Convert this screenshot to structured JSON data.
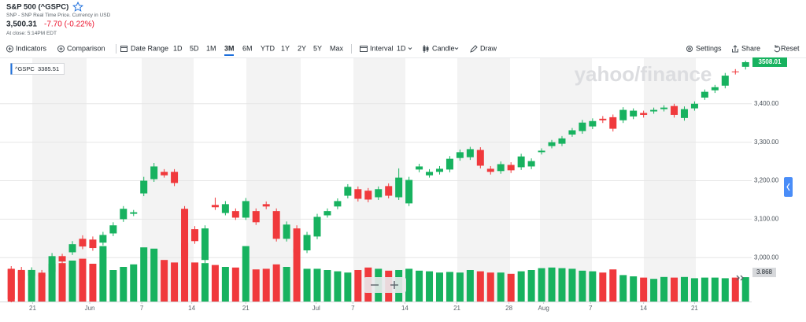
{
  "header": {
    "title": "S&P 500 (^GSPC)",
    "subtitle": "SNP - SNP Real Time Price. Currency in USD",
    "price": "3,500.31",
    "change": "-7.70 (-0.22%)",
    "close_time": "At close: 5:14PM EDT"
  },
  "toolbar": {
    "indicators": "Indicators",
    "comparison": "Comparison",
    "date_range": "Date Range",
    "ranges": [
      "1D",
      "5D",
      "1M",
      "3M",
      "6M",
      "YTD",
      "1Y",
      "2Y",
      "5Y",
      "Max"
    ],
    "selected_range": "3M",
    "interval_label": "Interval",
    "interval": "1D",
    "chart_style": "Candle",
    "draw": "Draw",
    "settings": "Settings",
    "share": "Share",
    "reset": "Reset"
  },
  "chart_data": {
    "type": "candlestick",
    "watermark": "yahoo/finance",
    "legend_symbol": "^GSPC",
    "legend_value": "3385.51",
    "up_color": "#17b25f",
    "down_color": "#f0393c",
    "grid": true,
    "open": [
      2970,
      2968,
      2953,
      2961,
      2963,
      3004,
      3014,
      3049,
      3047,
      3039,
      3063,
      3100,
      3114,
      3167,
      3204,
      3223,
      3223,
      3127,
      3074,
      2994,
      3137,
      3116,
      3121,
      3104,
      3121,
      3139,
      3121,
      3049,
      3076,
      3019,
      3055,
      3110,
      3133,
      3161,
      3178,
      3174,
      3157,
      3186,
      3157,
      3141,
      3229,
      3214,
      3223,
      3229,
      3259,
      3261,
      3280,
      3231,
      3225,
      3241,
      3235,
      3237,
      3274,
      3290,
      3296,
      3320,
      3329,
      3341,
      3361,
      3365,
      3357,
      3367,
      3376,
      3380,
      3386,
      3394,
      3363,
      3388,
      3416,
      3435,
      3447,
      3484,
      3496
    ],
    "high": [
      2978,
      2976,
      2975,
      2968,
      3012,
      3010,
      3043,
      3058,
      3055,
      3067,
      3092,
      3134,
      3124,
      3210,
      3246,
      3230,
      3230,
      3134,
      3082,
      3084,
      3156,
      3147,
      3128,
      3155,
      3128,
      3146,
      3128,
      3094,
      3084,
      3067,
      3114,
      3128,
      3154,
      3191,
      3185,
      3181,
      3185,
      3193,
      3232,
      3210,
      3244,
      3230,
      3238,
      3264,
      3281,
      3288,
      3287,
      3238,
      3250,
      3248,
      3270,
      3258,
      3284,
      3306,
      3316,
      3337,
      3358,
      3362,
      3368,
      3372,
      3391,
      3388,
      3382,
      3390,
      3396,
      3400,
      3393,
      3406,
      3437,
      3449,
      3480,
      3490,
      3512
    ],
    "low": [
      2884,
      2934,
      2945,
      2944,
      2958,
      2982,
      3007,
      3022,
      3018,
      3032,
      3056,
      3093,
      3108,
      3160,
      3197,
      3208,
      3186,
      2996,
      3036,
      2986,
      3124,
      3110,
      3098,
      3098,
      3085,
      3126,
      3042,
      3042,
      3006,
      3012,
      3048,
      3104,
      3126,
      3154,
      3146,
      3144,
      3150,
      3154,
      3150,
      3134,
      3222,
      3208,
      3216,
      3222,
      3252,
      3254,
      3232,
      3216,
      3218,
      3220,
      3228,
      3230,
      3268,
      3284,
      3290,
      3314,
      3322,
      3334,
      3350,
      3328,
      3350,
      3360,
      3364,
      3374,
      3380,
      3364,
      3356,
      3382,
      3410,
      3428,
      3440,
      3476,
      3489
    ],
    "close": [
      2892,
      2941,
      2968,
      2951,
      3004,
      2990,
      3035,
      3029,
      3025,
      3059,
      3084,
      3127,
      3118,
      3200,
      3237,
      3214,
      3194,
      3004,
      3043,
      3076,
      3131,
      3139,
      3104,
      3147,
      3092,
      3133,
      3049,
      3086,
      3014,
      3059,
      3106,
      3121,
      3147,
      3184,
      3153,
      3151,
      3178,
      3161,
      3208,
      3202,
      3237,
      3223,
      3231,
      3257,
      3274,
      3282,
      3239,
      3223,
      3243,
      3227,
      3263,
      3251,
      3278,
      3300,
      3310,
      3331,
      3351,
      3355,
      3357,
      3335,
      3384,
      3382,
      3371,
      3384,
      3390,
      3371,
      3386,
      3400,
      3431,
      3443,
      3473,
      3482,
      3508.01
    ],
    "volume": [
      5.2,
      4.8,
      5.0,
      4.3,
      6.0,
      6.1,
      6.5,
      6.8,
      6.0,
      8.8,
      5.0,
      5.5,
      5.9,
      8.6,
      8.4,
      6.6,
      6.2,
      9.3,
      6.2,
      6.1,
      5.8,
      5.5,
      5.4,
      8.8,
      5.1,
      5.2,
      5.9,
      5.5,
      8.4,
      5.2,
      5.2,
      5.0,
      4.8,
      4.6,
      5.0,
      5.4,
      5.2,
      4.9,
      5.0,
      5.2,
      4.9,
      4.8,
      4.6,
      4.7,
      4.6,
      5.0,
      4.8,
      4.6,
      4.6,
      4.4,
      4.8,
      5.0,
      5.3,
      5.4,
      5.3,
      5.2,
      4.9,
      4.8,
      4.6,
      5.1,
      4.2,
      4.0,
      3.8,
      3.6,
      3.9,
      3.8,
      3.9,
      3.7,
      3.8,
      3.8,
      3.7,
      3.8,
      3.868
    ],
    "volume_lim": [
      0,
      9.5
    ],
    "ylim": [
      2886,
      3510
    ],
    "yticks": [
      {
        "value": 3000,
        "label": "3,000.00"
      },
      {
        "value": 3100,
        "label": "3,100.00"
      },
      {
        "value": 3200,
        "label": "3,200.00"
      },
      {
        "value": 3300,
        "label": "3,300.00"
      },
      {
        "value": 3400,
        "label": "3,400.00"
      }
    ],
    "xlim": [
      -1.1,
      72.6
    ],
    "xticks": [
      {
        "value": 2.1,
        "label": "21"
      },
      {
        "value": 7.7,
        "label": "Jun"
      },
      {
        "value": 12.8,
        "label": "7"
      },
      {
        "value": 17.7,
        "label": "14"
      },
      {
        "value": 23,
        "label": "21"
      },
      {
        "value": 29.9,
        "label": "Jul"
      },
      {
        "value": 33.5,
        "label": "7"
      },
      {
        "value": 38.6,
        "label": "14"
      },
      {
        "value": 43.7,
        "label": "21"
      },
      {
        "value": 48.8,
        "label": "28"
      },
      {
        "value": 52.2,
        "label": "Aug"
      },
      {
        "value": 56.8,
        "label": "7"
      },
      {
        "value": 62,
        "label": "14"
      },
      {
        "value": 67,
        "label": "21"
      }
    ]
  }
}
